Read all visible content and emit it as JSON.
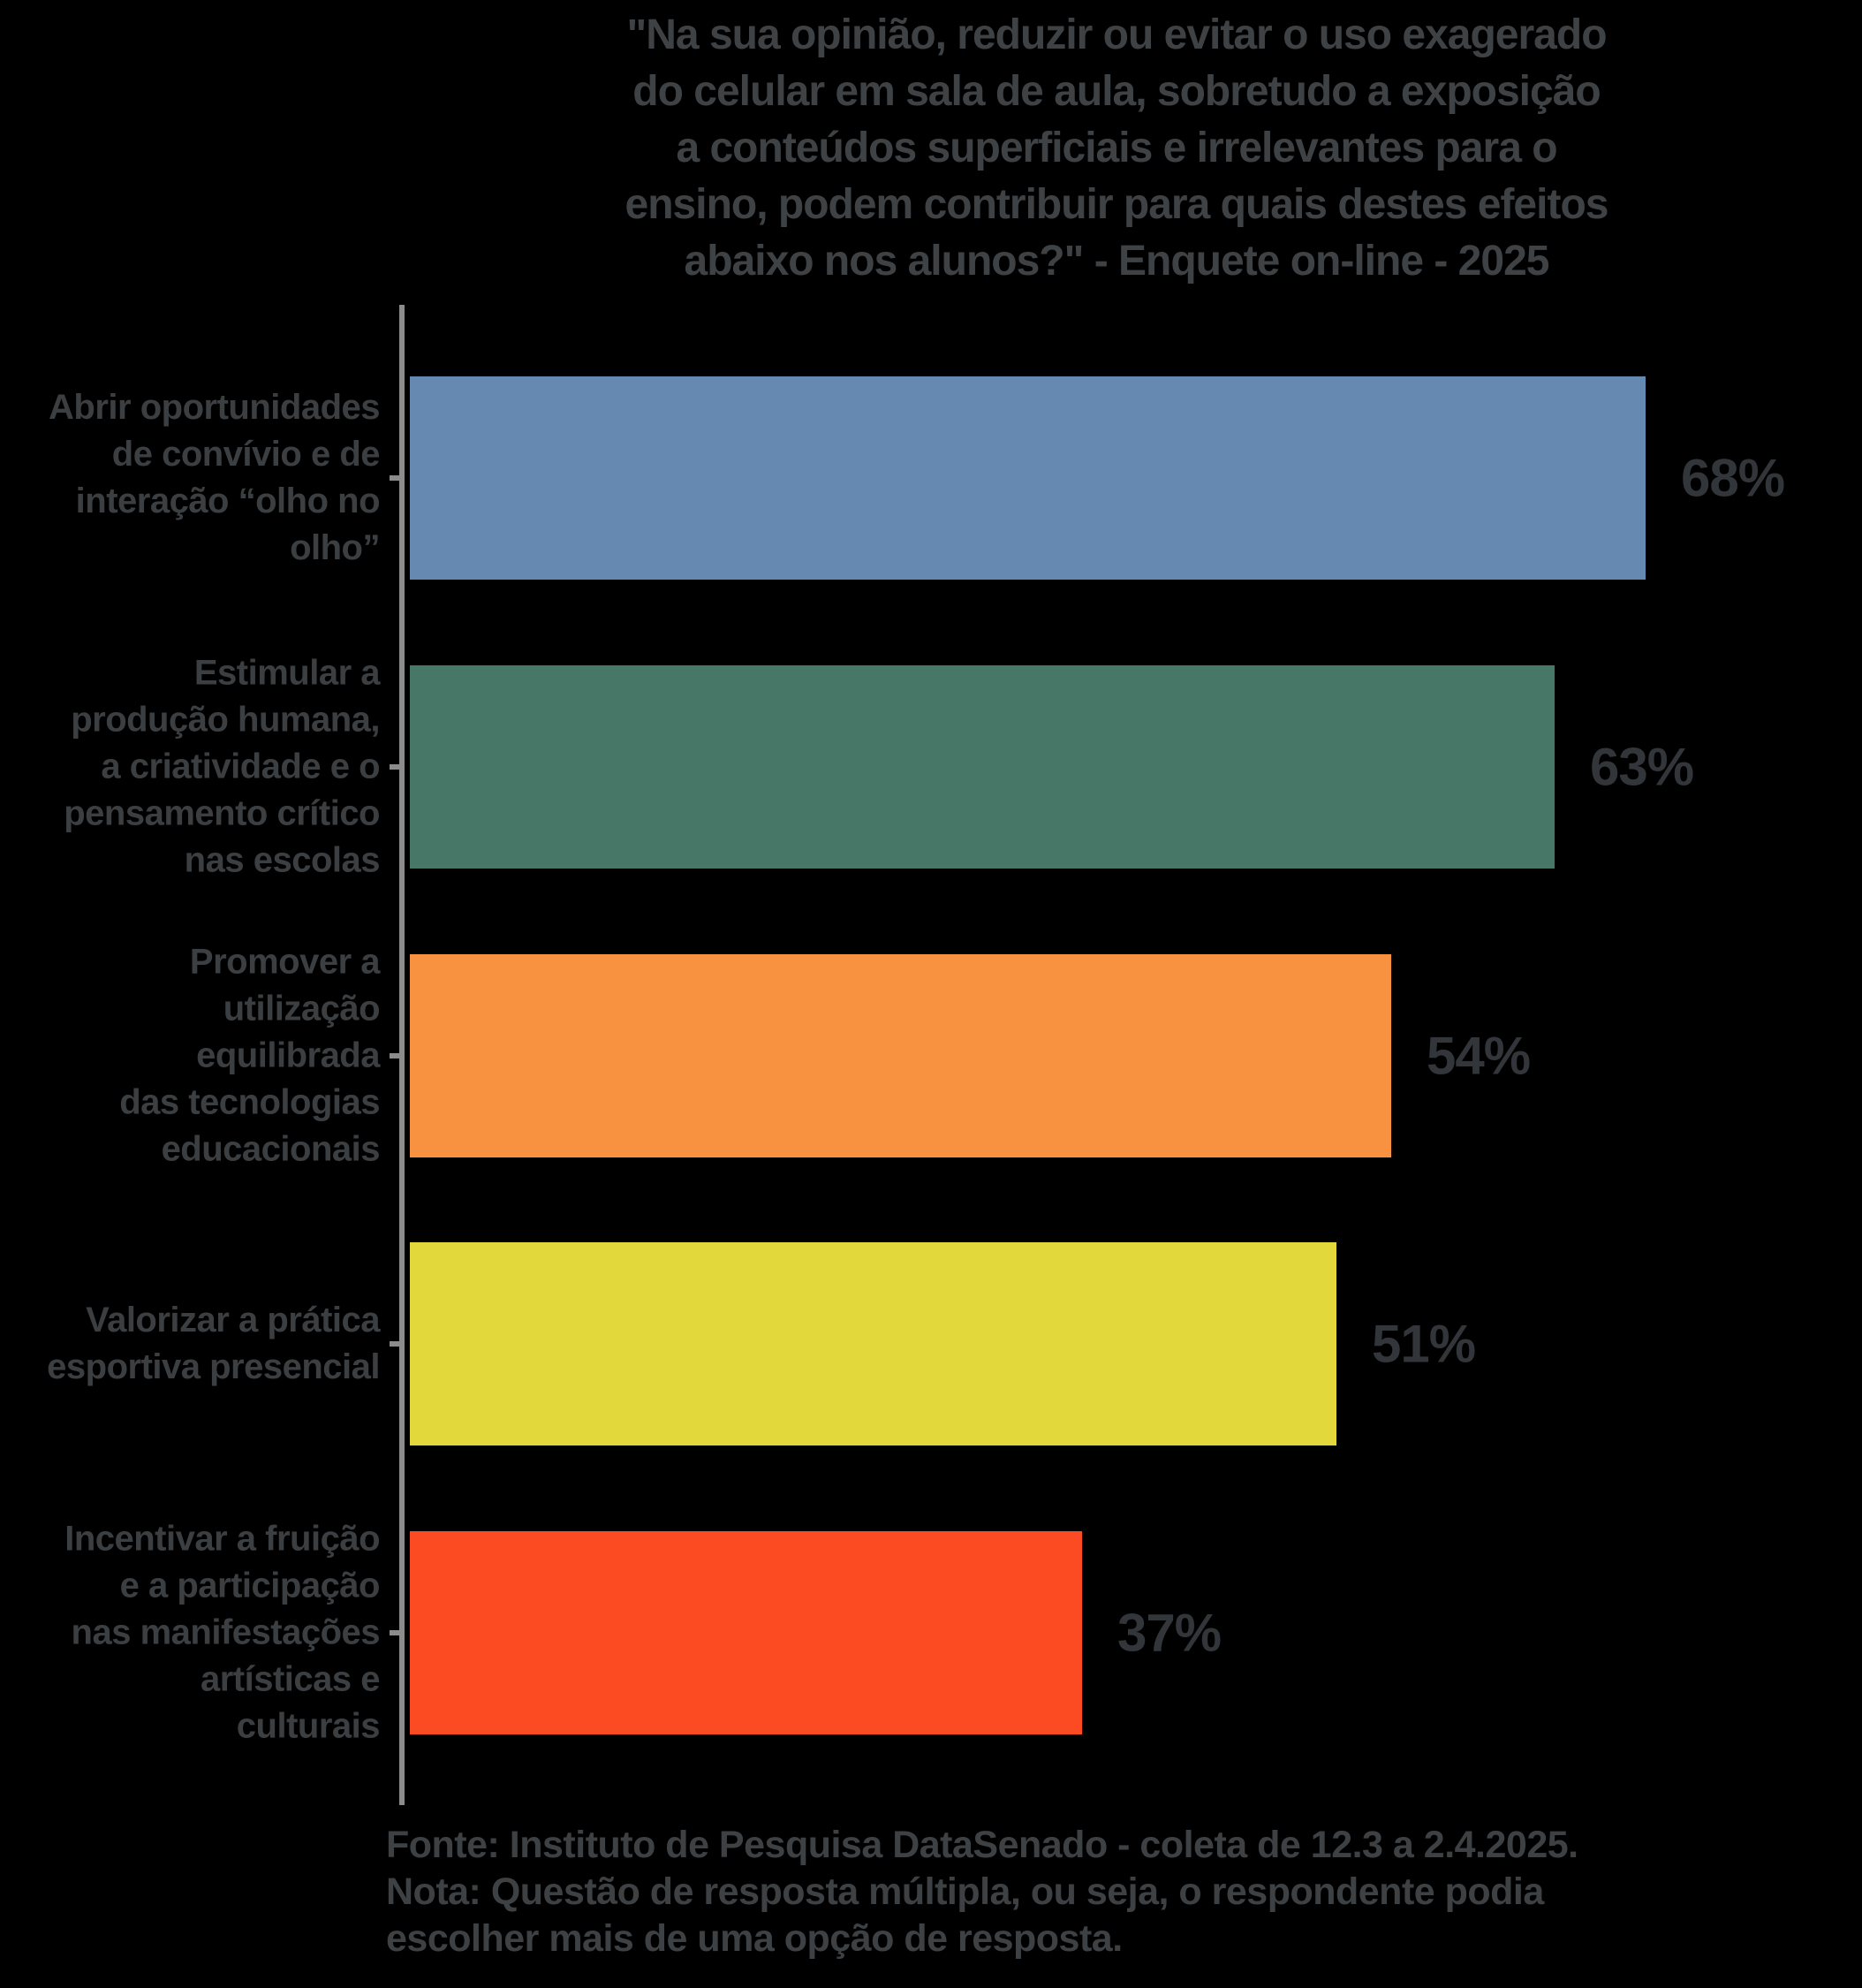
{
  "chart_data": {
    "type": "bar",
    "orientation": "horizontal",
    "title": "\"Na sua opinião, reduzir ou evitar o uso exagerado\ndo celular em sala de aula, sobretudo a exposição\na conteúdos superficiais e irrelevantes para o\nensino, podem contribuir para quais destes efeitos\nabaixo nos alunos?\" - Enquete on-line - 2025",
    "categories": [
      "Abrir oportunidades\nde convívio e de\ninteração “olho no\nolho”",
      "Estimular a\nprodução humana,\na criatividade e o\npensamento crítico\nnas escolas",
      "Promover a\nutilização\nequilibrada\ndas tecnologias\neducacionais",
      "Valorizar a prática\nesportiva presencial",
      "Incentivar a fruição\ne a participação\nnas manifestações\nartísticas e\nculturais"
    ],
    "values": [
      68,
      63,
      54,
      51,
      37
    ],
    "value_labels": [
      "68%",
      "63%",
      "54%",
      "51%",
      "37%"
    ],
    "bar_colors": [
      "#6689B1",
      "#477767",
      "#F89140",
      "#E3D83B",
      "#FC4A22"
    ],
    "xlim": [
      0,
      80
    ],
    "xlabel": "",
    "ylabel": "",
    "grid": false,
    "legend": false,
    "value_label_position": "right-of-bar"
  },
  "source_note": "Fonte: Instituto de Pesquisa DataSenado - coleta de 12.3 a 2.4.2025.\nNota: Questão de resposta múltipla, ou seja, o respondente podia\nescolher mais de uma opção de resposta.",
  "colors": {
    "background": "#000000",
    "title_text": "#3F4245",
    "label_text": "#3C3F42",
    "value_text": "#323539",
    "footer_text": "#3E4144",
    "axis_line": "#8C8C8C"
  }
}
